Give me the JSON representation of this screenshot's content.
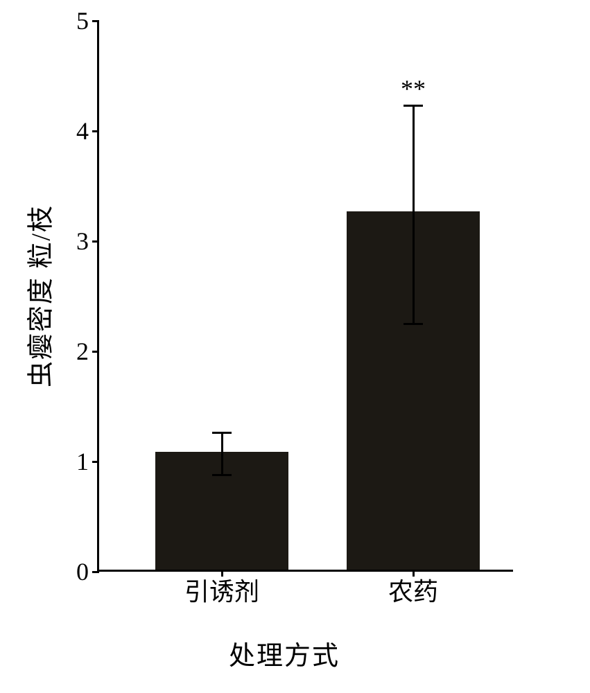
{
  "chart": {
    "type": "bar",
    "background_color": "#ffffff",
    "axis_color": "#000000",
    "axis_width": 3,
    "y_axis": {
      "label": "虫瘿密度 粒/枝",
      "label_fontsize": 38,
      "min": 0,
      "max": 5,
      "ticks": [
        0,
        1,
        2,
        3,
        4,
        5
      ],
      "tick_fontsize": 36
    },
    "x_axis": {
      "label": "处理方式",
      "label_fontsize": 38,
      "tick_fontsize": 36
    },
    "bars": [
      {
        "category": "引诱剂",
        "value": 1.07,
        "error_upper": 0.19,
        "error_lower": 0.19,
        "color": "#1c1914",
        "x_center_fraction": 0.295,
        "width_fraction": 0.32,
        "annotation": ""
      },
      {
        "category": "农药",
        "value": 3.25,
        "error_upper": 0.98,
        "error_lower": 1.0,
        "color": "#1c1914",
        "x_center_fraction": 0.755,
        "width_fraction": 0.32,
        "annotation": "**"
      }
    ],
    "error_bar": {
      "color": "#000000",
      "line_width": 3,
      "cap_width": 28
    },
    "annotation_fontsize": 36
  }
}
